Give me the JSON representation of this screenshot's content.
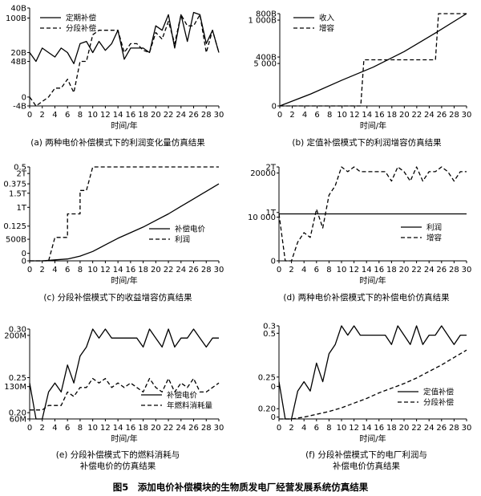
{
  "figure_title": "图5　添加电价补偿模块的生物质发电厂经营发展系统仿真结果",
  "chart_data": [
    {
      "id": "a",
      "type": "line",
      "caption": "(a) 两种电价补偿模式下的利润变化量仿真结果",
      "xlabel": "时间/年",
      "xlim": [
        0,
        30
      ],
      "xticks": [
        0,
        2,
        4,
        6,
        8,
        10,
        12,
        14,
        16,
        18,
        20,
        22,
        24,
        26,
        28,
        30
      ],
      "ylim": [
        -4,
        40
      ],
      "y_tick_labels": [
        {
          "v": 40,
          "t": "40B"
        },
        {
          "v": 35.5,
          "t": "100B"
        },
        {
          "v": 20,
          "t": "20B"
        },
        {
          "v": 16,
          "t": "48B"
        },
        {
          "v": 0,
          "t": "0"
        },
        {
          "v": -4,
          "t": "-4B"
        }
      ],
      "legend_pos": "top-left",
      "series": [
        {
          "name": "定期补偿",
          "style": "solid",
          "x": [
            0,
            1,
            2,
            3,
            4,
            5,
            6,
            7,
            8,
            9,
            10,
            11,
            12,
            13,
            14,
            15,
            16,
            17,
            18,
            19,
            20,
            21,
            22,
            23,
            24,
            25,
            26,
            27,
            28,
            29,
            30
          ],
          "y": [
            20,
            16,
            22,
            20,
            18,
            22,
            20,
            15,
            24,
            25,
            20,
            25,
            21,
            24,
            30,
            17,
            22,
            22,
            22,
            20,
            32,
            30,
            37,
            22,
            37,
            25,
            38,
            37,
            24,
            30,
            20
          ]
        },
        {
          "name": "分段补偿",
          "style": "dashed",
          "x": [
            0,
            1,
            2,
            3,
            4,
            5,
            6,
            7,
            8,
            9,
            10,
            11,
            12,
            13,
            14,
            15,
            16,
            17,
            18,
            19,
            20,
            21,
            22,
            23,
            24,
            25,
            26,
            27,
            28,
            29,
            30
          ],
          "y": [
            0,
            -4,
            -2,
            0,
            4,
            4,
            8,
            2,
            16,
            16,
            28,
            30,
            30,
            30,
            30,
            20,
            24,
            24,
            21,
            20,
            29,
            26,
            34,
            24,
            37,
            32,
            32,
            37,
            20,
            30,
            20
          ]
        }
      ]
    },
    {
      "id": "b",
      "type": "line",
      "caption": "(b) 定值补偿模式下的利润增容仿真结果",
      "xlabel": "时间/年",
      "xlim": [
        0,
        30
      ],
      "xticks": [
        0,
        2,
        4,
        6,
        8,
        10,
        12,
        14,
        16,
        18,
        20,
        22,
        24,
        26,
        28,
        30
      ],
      "ylim": [
        0,
        1000
      ],
      "y_tick_labels": [
        {
          "v": 1000,
          "t": "800B"
        },
        {
          "v": 930,
          "t": "1 000B"
        },
        {
          "v": 530,
          "t": "400B"
        },
        {
          "v": 460,
          "t": "5 000"
        },
        {
          "v": 0,
          "t": "0"
        }
      ],
      "legend_pos": "top-right",
      "series": [
        {
          "name": "收入",
          "style": "solid",
          "x": [
            0,
            5,
            10,
            15,
            20,
            25,
            30
          ],
          "y": [
            0,
            130,
            280,
            420,
            590,
            790,
            1000
          ]
        },
        {
          "name": "增容",
          "style": "dashed",
          "x": [
            0,
            13,
            13.5,
            25,
            25.5,
            30
          ],
          "y": [
            0,
            0,
            500,
            500,
            1000,
            1000
          ]
        }
      ]
    },
    {
      "id": "c",
      "type": "line",
      "caption": "(c) 分段补偿模式下的收益增容仿真结果",
      "xlabel": "时间/年",
      "xlim": [
        0,
        30
      ],
      "xticks": [
        0,
        2,
        4,
        6,
        8,
        10,
        12,
        14,
        16,
        18,
        20,
        22,
        24,
        26,
        28,
        30
      ],
      "ylim": [
        0,
        1.0
      ],
      "y_tick_labels": [
        {
          "v": 1.0,
          "t": "0.5"
        },
        {
          "v": 0.93,
          "t": "2T"
        },
        {
          "v": 0.82,
          "t": "0.375"
        },
        {
          "v": 0.72,
          "t": "1.5T"
        },
        {
          "v": 0.57,
          "t": "1T"
        },
        {
          "v": 0.37,
          "t": "0.125"
        },
        {
          "v": 0.23,
          "t": "500B"
        },
        {
          "v": 0.08,
          "t": "0"
        },
        {
          "v": 0,
          "t": "0"
        }
      ],
      "legend_pos": "center-right",
      "series": [
        {
          "name": "补偿电价",
          "style": "solid",
          "x": [
            0,
            2,
            4,
            6,
            8,
            10,
            12,
            14,
            16,
            18,
            20,
            22,
            24,
            26,
            28,
            30
          ],
          "y": [
            0,
            0,
            0.01,
            0.02,
            0.05,
            0.1,
            0.17,
            0.24,
            0.3,
            0.36,
            0.43,
            0.5,
            0.58,
            0.66,
            0.74,
            0.82
          ]
        },
        {
          "name": "利润",
          "style": "dashed",
          "x": [
            0,
            2,
            3,
            4,
            4,
            5,
            6,
            6,
            7,
            8,
            8,
            9,
            10,
            30
          ],
          "y": [
            0,
            0,
            0,
            0.25,
            0.25,
            0.25,
            0.25,
            0.5,
            0.5,
            0.5,
            0.75,
            0.75,
            1.0,
            1.0
          ]
        }
      ]
    },
    {
      "id": "d",
      "type": "line",
      "caption": "(d) 两种电价补偿模式下的补偿电价仿真结果",
      "xlabel": "时间/年",
      "xlim": [
        0,
        30
      ],
      "xticks": [
        0,
        2,
        4,
        6,
        8,
        10,
        12,
        14,
        16,
        18,
        20,
        22,
        24,
        26,
        28,
        30
      ],
      "ylim": [
        0,
        20000
      ],
      "y_tick_labels": [
        {
          "v": 20000,
          "t": "2T"
        },
        {
          "v": 18700,
          "t": "20000"
        },
        {
          "v": 10300,
          "t": "1T"
        },
        {
          "v": 9300,
          "t": "10 000"
        },
        {
          "v": 0,
          "t": "0"
        }
      ],
      "legend_pos": "center-right",
      "series": [
        {
          "name": "利润",
          "style": "solid",
          "x": [
            0,
            30
          ],
          "y": [
            10000,
            10000
          ]
        },
        {
          "name": "增容",
          "style": "dashed",
          "x": [
            0,
            1,
            2,
            3,
            4,
            5,
            6,
            7,
            8,
            9,
            10,
            11,
            12,
            13,
            14,
            15,
            16,
            17,
            18,
            19,
            20,
            21,
            22,
            23,
            24,
            25,
            26,
            27,
            28,
            29,
            30
          ],
          "y": [
            10000,
            0,
            0,
            4000,
            6000,
            5000,
            11000,
            7000,
            14000,
            16000,
            20000,
            19000,
            20000,
            19000,
            19000,
            19000,
            19000,
            19000,
            17000,
            20000,
            19000,
            17000,
            20000,
            17000,
            19000,
            19000,
            20000,
            19000,
            17000,
            19000,
            19000
          ]
        }
      ]
    },
    {
      "id": "e",
      "type": "line",
      "caption_line1": "(e) 分段补偿模式下的燃料消耗与",
      "caption_line2": "补偿电价的仿真结果",
      "xlabel": "时间/年",
      "xlim": [
        0,
        30
      ],
      "xticks": [
        0,
        2,
        4,
        6,
        8,
        10,
        12,
        14,
        16,
        18,
        20,
        22,
        24,
        26,
        28,
        30
      ],
      "ylim": [
        0,
        1.0
      ],
      "y_tick_labels": [
        {
          "v": 1.0,
          "t": "0.30"
        },
        {
          "v": 0.93,
          "t": "200M"
        },
        {
          "v": 0.46,
          "t": "0.25"
        },
        {
          "v": 0.36,
          "t": "130M"
        },
        {
          "v": 0.07,
          "t": "0.20"
        },
        {
          "v": 0,
          "t": "60M"
        }
      ],
      "legend_pos": "bottom-right",
      "series": [
        {
          "name": "补偿电价",
          "style": "solid",
          "x": [
            0,
            1,
            2,
            3,
            4,
            5,
            6,
            7,
            8,
            9,
            10,
            11,
            12,
            13,
            14,
            15,
            16,
            17,
            18,
            19,
            20,
            21,
            22,
            23,
            24,
            25,
            26,
            27,
            28,
            29,
            30
          ],
          "y": [
            0.4,
            0,
            0,
            0.3,
            0.4,
            0.3,
            0.6,
            0.4,
            0.7,
            0.8,
            1.0,
            0.9,
            1.0,
            0.9,
            0.9,
            0.9,
            0.9,
            0.9,
            0.8,
            1.0,
            0.9,
            0.8,
            1.0,
            0.8,
            0.9,
            0.9,
            1.0,
            0.9,
            0.8,
            0.9,
            0.9
          ]
        },
        {
          "name": "年燃料消耗量",
          "style": "dashed",
          "x": [
            0,
            1,
            2,
            3,
            4,
            5,
            6,
            7,
            8,
            9,
            10,
            11,
            12,
            13,
            14,
            15,
            16,
            17,
            18,
            19,
            20,
            21,
            22,
            23,
            24,
            25,
            26,
            27,
            28,
            29,
            30
          ],
          "y": [
            0.1,
            0.1,
            0.1,
            0.15,
            0.15,
            0.15,
            0.3,
            0.25,
            0.35,
            0.35,
            0.45,
            0.4,
            0.45,
            0.35,
            0.4,
            0.35,
            0.4,
            0.35,
            0.3,
            0.45,
            0.35,
            0.3,
            0.45,
            0.3,
            0.4,
            0.35,
            0.45,
            0.3,
            0.3,
            0.35,
            0.4
          ]
        }
      ]
    },
    {
      "id": "f",
      "type": "line",
      "caption_line1": "(f) 分段补偿模式下的电厂利润与",
      "caption_line2": "补偿电价仿真结果",
      "xlabel": "时间/年",
      "xlim": [
        0,
        30
      ],
      "xticks": [
        0,
        2,
        4,
        6,
        8,
        10,
        12,
        14,
        16,
        18,
        20,
        22,
        24,
        26,
        28,
        30
      ],
      "ylim": [
        0,
        1.0
      ],
      "y_tick_labels": [
        {
          "v": 1.0,
          "t": "0.3"
        },
        {
          "v": 0.92,
          "t": "0.5"
        },
        {
          "v": 0.45,
          "t": "0.25"
        },
        {
          "v": 0.35,
          "t": "0"
        },
        {
          "v": 0.11,
          "t": "0.20"
        },
        {
          "v": 0.02,
          "t": "0"
        }
      ],
      "legend_pos": "bottom-right",
      "series": [
        {
          "name": "定值补偿",
          "style": "solid",
          "x": [
            0,
            1,
            2,
            3,
            4,
            5,
            6,
            7,
            8,
            9,
            10,
            11,
            12,
            13,
            14,
            15,
            16,
            17,
            18,
            19,
            20,
            21,
            22,
            23,
            24,
            25,
            26,
            27,
            28,
            29,
            30
          ],
          "y": [
            0.4,
            0,
            0,
            0.3,
            0.4,
            0.3,
            0.6,
            0.4,
            0.7,
            0.8,
            1.0,
            0.9,
            1.0,
            0.9,
            0.9,
            0.9,
            0.9,
            0.9,
            0.8,
            1.0,
            0.9,
            0.8,
            1.0,
            0.8,
            0.9,
            0.9,
            1.0,
            0.9,
            0.8,
            0.9,
            0.9
          ]
        },
        {
          "name": "分段补偿",
          "style": "dashed",
          "x": [
            0,
            2,
            4,
            6,
            8,
            10,
            12,
            14,
            16,
            18,
            20,
            22,
            24,
            26,
            28,
            30
          ],
          "y": [
            0,
            0,
            0.02,
            0.05,
            0.08,
            0.12,
            0.17,
            0.22,
            0.28,
            0.33,
            0.38,
            0.44,
            0.51,
            0.58,
            0.66,
            0.74
          ]
        }
      ]
    }
  ]
}
